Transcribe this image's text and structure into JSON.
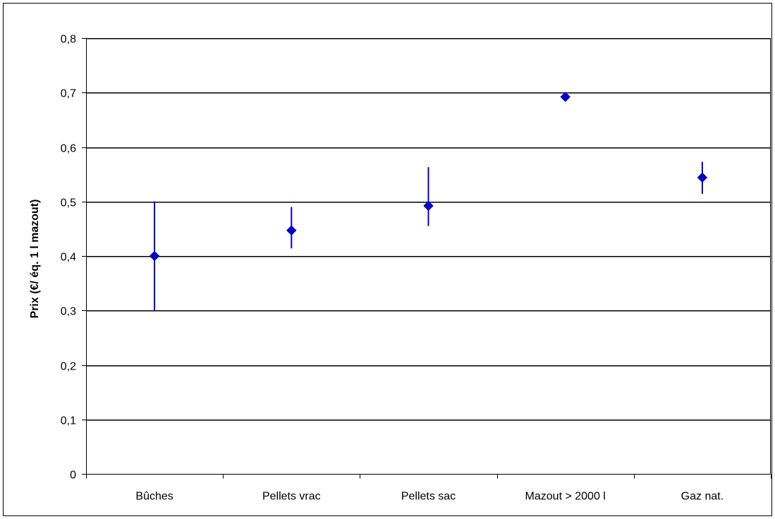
{
  "chart_data": {
    "type": "scatter",
    "title": "",
    "xlabel": "",
    "ylabel": "Prix (€/ éq. 1 l mazout)",
    "categories": [
      "Bûches",
      "Pellets vrac",
      "Pellets sac",
      "Mazout > 2000 l",
      "Gaz nat."
    ],
    "series": [
      {
        "values": [
          0.4,
          0.447,
          0.492,
          0.692,
          0.544
        ],
        "low": [
          0.3,
          0.414,
          0.455,
          0.692,
          0.514
        ],
        "high": [
          0.5,
          0.49,
          0.563,
          0.692,
          0.573
        ]
      }
    ],
    "ylim": [
      0,
      0.8
    ],
    "yticks": [
      0,
      0.1,
      0.2,
      0.3,
      0.4,
      0.5,
      0.6,
      0.7,
      0.8
    ],
    "ytick_labels": [
      "0",
      "0,1",
      "0,2",
      "0,3",
      "0,4",
      "0,5",
      "0,6",
      "0,7",
      "0,8"
    ],
    "grid": true,
    "legend": "none",
    "colors": {
      "series": "#0000CC",
      "grid": "#000000",
      "frame": "#000000"
    }
  }
}
